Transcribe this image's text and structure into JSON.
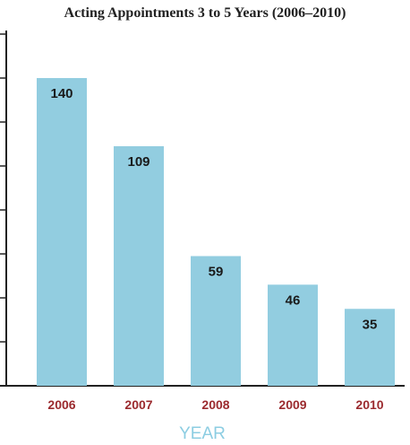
{
  "chart_data": {
    "type": "bar",
    "title": "Acting Appointments 3 to 5 Years (2006–2010)",
    "xlabel": "YEAR",
    "ylabel": "",
    "categories": [
      "2006",
      "2007",
      "2008",
      "2009",
      "2010"
    ],
    "values": [
      140,
      109,
      59,
      46,
      35
    ],
    "ylim": [
      0,
      160
    ],
    "y_tick_step": 20,
    "y_tick_labels_shown": false,
    "grid": false,
    "legend": "none"
  },
  "colors": {
    "bar": "#92cde0",
    "x_tick_label": "#9b2a2e",
    "x_axis_title": "#8ccde2",
    "axis": "#222222"
  }
}
